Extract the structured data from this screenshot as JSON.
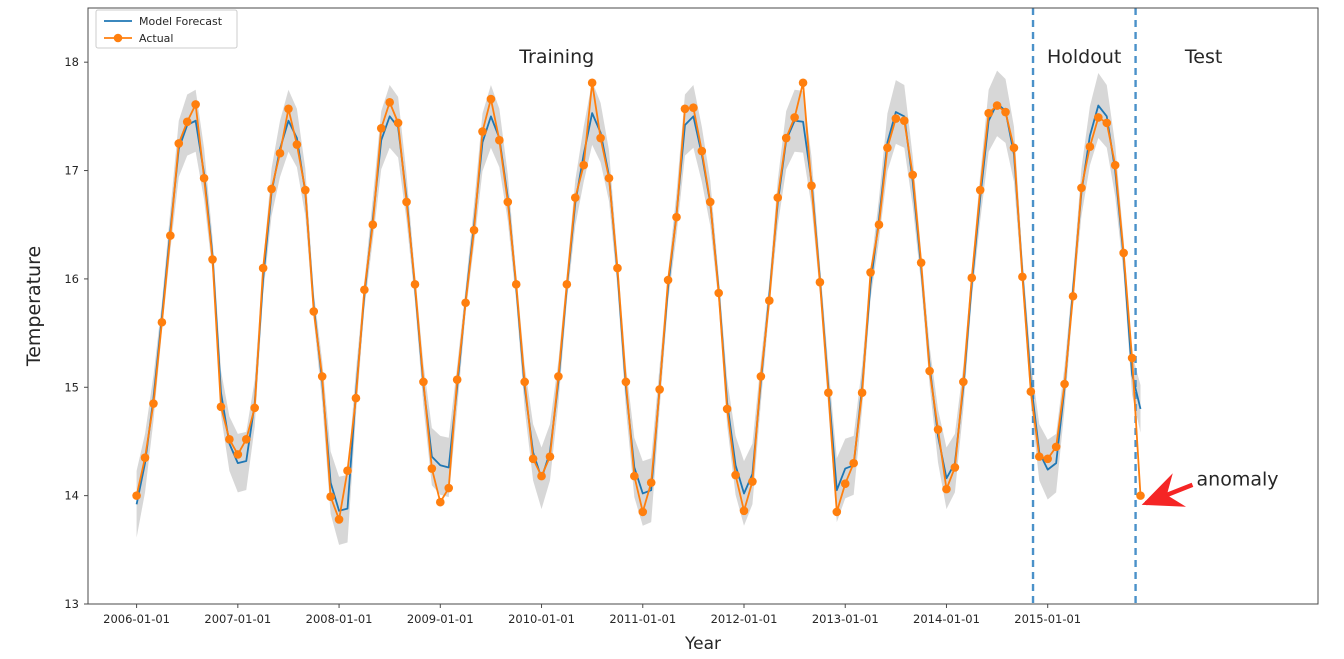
{
  "figure": {
    "background": "#ffffff",
    "xlabel": "Year",
    "ylabel": "Temperature"
  },
  "legend": {
    "position": "upper-left",
    "items": [
      {
        "label": "Model Forecast",
        "color": "#1f77b4",
        "marker": "line"
      },
      {
        "label": "Actual",
        "color": "#ff7f0e",
        "marker": "line-dot"
      }
    ]
  },
  "chart_data": {
    "type": "line",
    "title": "",
    "xlabel": "Year",
    "ylabel": "Temperature",
    "grid": false,
    "legend_position": "upper-left",
    "x_start": "2006-01-01",
    "x_freq": "monthly",
    "n_points": 120,
    "x_tick_labels": [
      "2006-01-01",
      "2007-01-01",
      "2008-01-01",
      "2009-01-01",
      "2010-01-01",
      "2011-01-01",
      "2012-01-01",
      "2013-01-01",
      "2014-01-01",
      "2015-01-01"
    ],
    "x_tick_years": [
      2006,
      2007,
      2008,
      2009,
      2010,
      2011,
      2012,
      2013,
      2014,
      2015
    ],
    "y_ticks": [
      13,
      14,
      15,
      16,
      17,
      18
    ],
    "xlim_year": [
      2005.52,
      2017.67
    ],
    "ylim": [
      13,
      18.5
    ],
    "series": [
      {
        "name": "Model Forecast",
        "color": "#1f77b4",
        "style": "line",
        "values": [
          13.92,
          14.3,
          14.9,
          15.65,
          16.45,
          17.2,
          17.42,
          17.46,
          16.97,
          16.22,
          14.95,
          14.48,
          14.3,
          14.32,
          14.85,
          16.0,
          16.8,
          17.2,
          17.46,
          17.3,
          16.8,
          15.75,
          15.05,
          14.12,
          13.86,
          13.88,
          14.95,
          15.85,
          16.55,
          17.28,
          17.5,
          17.4,
          16.75,
          15.92,
          15.02,
          14.36,
          14.28,
          14.26,
          15.0,
          15.8,
          16.5,
          17.26,
          17.5,
          17.3,
          16.75,
          15.92,
          15.0,
          14.4,
          14.16,
          14.4,
          15.05,
          15.92,
          16.7,
          17.15,
          17.53,
          17.35,
          16.95,
          16.06,
          15.0,
          14.26,
          14.02,
          14.05,
          15.0,
          15.92,
          16.6,
          17.42,
          17.5,
          17.15,
          16.7,
          15.9,
          14.86,
          14.28,
          14.02,
          14.2,
          15.05,
          15.85,
          16.7,
          17.28,
          17.46,
          17.45,
          16.9,
          16.0,
          15.0,
          14.05,
          14.25,
          14.28,
          15.0,
          15.95,
          16.55,
          17.26,
          17.54,
          17.5,
          16.9,
          16.1,
          15.2,
          14.55,
          14.16,
          14.3,
          15.0,
          15.95,
          16.75,
          17.46,
          17.62,
          17.55,
          17.15,
          16.06,
          15.05,
          14.4,
          14.24,
          14.3,
          15.0,
          15.9,
          16.8,
          17.32,
          17.6,
          17.5,
          17.0,
          16.2,
          15.12,
          14.8
        ]
      },
      {
        "name": "Actual",
        "color": "#ff7f0e",
        "style": "line+marker",
        "values": [
          14.0,
          14.35,
          14.85,
          15.6,
          16.4,
          17.25,
          17.45,
          17.61,
          16.93,
          16.18,
          14.82,
          14.52,
          14.38,
          14.52,
          14.81,
          16.1,
          16.83,
          17.16,
          17.57,
          17.24,
          16.82,
          15.7,
          15.1,
          13.99,
          13.78,
          14.23,
          14.9,
          15.9,
          16.5,
          17.39,
          17.63,
          17.44,
          16.71,
          15.95,
          15.05,
          14.25,
          13.94,
          14.07,
          15.07,
          15.78,
          16.45,
          17.36,
          17.66,
          17.28,
          16.71,
          15.95,
          15.05,
          14.34,
          14.18,
          14.36,
          15.1,
          15.95,
          16.75,
          17.05,
          17.81,
          17.3,
          16.93,
          16.1,
          15.05,
          14.18,
          13.85,
          14.12,
          14.98,
          15.99,
          16.57,
          17.57,
          17.58,
          17.18,
          16.71,
          15.87,
          14.8,
          14.19,
          13.86,
          14.13,
          15.1,
          15.8,
          16.75,
          17.3,
          17.49,
          17.81,
          16.86,
          15.97,
          14.95,
          13.85,
          14.11,
          14.3,
          14.95,
          16.06,
          16.5,
          17.21,
          17.48,
          17.46,
          16.96,
          16.15,
          15.15,
          14.61,
          14.06,
          14.26,
          15.05,
          16.01,
          16.82,
          17.53,
          17.6,
          17.54,
          17.21,
          16.02,
          14.96,
          14.36,
          14.34,
          14.45,
          15.03,
          15.84,
          16.84,
          17.22,
          17.49,
          17.44,
          17.05,
          16.24,
          15.27,
          14.0
        ]
      }
    ],
    "confidence_band": {
      "around_series": "Model Forecast",
      "color": "#c9c9c9",
      "opacity": 0.75,
      "halfwidth_base": 0.12,
      "halfwidth_slope": 0.1,
      "halfwidth_center": 15.8
    },
    "vlines": [
      {
        "id": "holdout-start",
        "year": 2014.855,
        "style": "dashed",
        "color": "#4a91c9"
      },
      {
        "id": "test-start",
        "year": 2015.868,
        "style": "dashed",
        "color": "#4a91c9"
      }
    ],
    "region_labels": [
      {
        "id": "training",
        "text": "Training",
        "color": "#1a1af0",
        "year": 2010.15,
        "value": 18.05
      },
      {
        "id": "holdout",
        "text": "Holdout",
        "color": "#0e8012",
        "year": 2015.36,
        "value": 18.05
      },
      {
        "id": "test",
        "text": "Test",
        "color": "#f52525",
        "year": 2016.54,
        "value": 18.05
      }
    ],
    "annotation": {
      "text": "anomaly",
      "color": "#f52525",
      "text_year": 2016.47,
      "text_value": 14.16,
      "arrow_tail": {
        "year": 2016.43,
        "value": 14.1
      },
      "arrow_tip": {
        "year": 2015.97,
        "value": 13.93
      },
      "points_at": {
        "date": "2015-12-01",
        "actual_value": 14.0,
        "forecast_value": 14.8
      }
    }
  }
}
